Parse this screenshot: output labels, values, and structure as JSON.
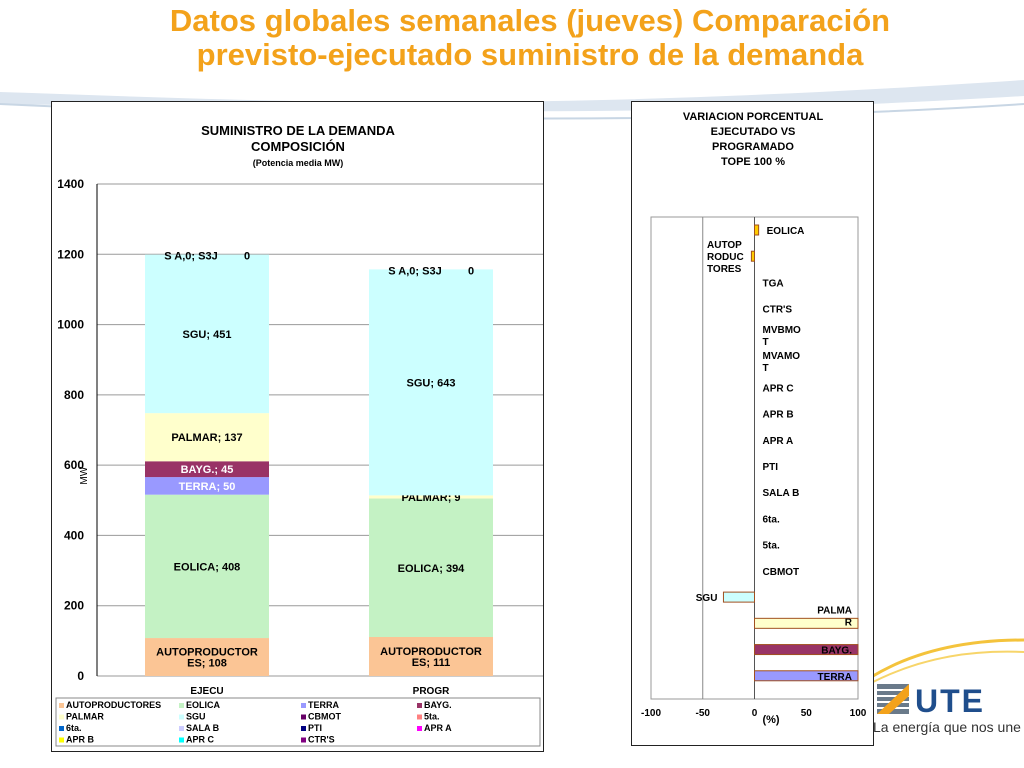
{
  "page_title_line1": "Datos globales semanales  (jueves) Comparación",
  "page_title_line2": "previsto-ejecutado suministro de la demanda",
  "brand": {
    "logo_text": "UTE",
    "tagline": "La energía que nos une"
  },
  "colors": {
    "title": "#f3a21b",
    "AUTOPRODUCTORES": "#fbc595",
    "EOLICA": "#c4f2c4",
    "TERRA": "#9999ff",
    "BAYG.": "#993366",
    "PALMAR": "#ffffcc",
    "SGU": "#ccffff",
    "CBMOT": "#660066",
    "5ta.": "#ff8080",
    "6ta.": "#0066cc",
    "SALA B": "#ccccff",
    "PTI": "#000080",
    "APR A": "#ff00ff",
    "APR B": "#ffff00",
    "APR C": "#00ffff",
    "CTR'S": "#800080"
  },
  "chart_data": [
    {
      "type": "bar",
      "stacked": true,
      "title": "SUMINISTRO DE LA DEMANDA\nCOMPOSICIÓN",
      "subtitle": "(Potencia media MW)",
      "xlabel": "",
      "ylabel": "MW",
      "ylim": [
        0,
        1400
      ],
      "yticks": [
        0,
        200,
        400,
        600,
        800,
        1000,
        1200,
        1400
      ],
      "grid": true,
      "legend": "bottom",
      "categories": [
        "EJECU",
        "PROGR"
      ],
      "series": [
        {
          "name": "AUTOPRODUCTORES",
          "values": [
            108,
            111
          ],
          "labels": [
            "AUTOPRODUCTOR\nES; 108",
            "AUTOPRODUCTOR\nES; 111"
          ]
        },
        {
          "name": "EOLICA",
          "values": [
            408,
            394
          ],
          "labels": [
            "EOLICA; 408",
            "EOLICA; 394"
          ]
        },
        {
          "name": "TERRA",
          "values": [
            50,
            0
          ],
          "labels": [
            "TERRA; 50",
            ""
          ]
        },
        {
          "name": "BAYG.",
          "values": [
            45,
            0
          ],
          "labels": [
            "BAYG.; 45",
            ""
          ]
        },
        {
          "name": "PALMAR",
          "values": [
            137,
            9
          ],
          "labels": [
            "PALMAR; 137",
            "PALMAR; 9"
          ]
        },
        {
          "name": "SGU",
          "values": [
            451,
            643
          ],
          "labels": [
            "SGU; 451",
            "SGU; 643"
          ]
        },
        {
          "name": "CBMOT",
          "values": [
            0,
            0
          ]
        },
        {
          "name": "5ta.",
          "values": [
            0,
            0
          ]
        },
        {
          "name": "6ta.",
          "values": [
            0,
            0
          ]
        },
        {
          "name": "SALA B",
          "values": [
            0,
            0
          ],
          "labels": [
            "S A,0; S3J",
            "S A,0; S3J"
          ]
        },
        {
          "name": "PTI",
          "values": [
            0,
            0
          ],
          "labels": [
            "0",
            "0"
          ]
        },
        {
          "name": "APR A",
          "values": [
            0,
            0
          ]
        },
        {
          "name": "APR B",
          "values": [
            0,
            0
          ]
        },
        {
          "name": "APR C",
          "values": [
            0,
            0
          ]
        },
        {
          "name": "CTR'S",
          "values": [
            0,
            0
          ]
        }
      ]
    },
    {
      "type": "bar",
      "orientation": "horizontal",
      "title": "VARIACION PORCENTUAL\nEJECUTADO VS\nPROGRAMADO\nTOPE 100 %",
      "xlabel": "(%)",
      "xlim": [
        -100,
        100
      ],
      "xticks": [
        -100,
        -50,
        0,
        50,
        100
      ],
      "grid": false,
      "categories": [
        "EOLICA",
        "AUTOP\nRODUC\nTORES",
        "TGA",
        "CTR'S",
        "MVBMO\nT",
        "MVAMO\nT",
        "APR C",
        "APR B",
        "APR A",
        "PTI",
        "SALA B",
        "6ta.",
        "5ta.",
        "CBMOT",
        "SGU",
        "PALMA\nR",
        "BAYG.",
        "TERRA"
      ],
      "values": [
        4,
        -3,
        0,
        0,
        0,
        0,
        0,
        0,
        0,
        0,
        0,
        0,
        0,
        0,
        -30,
        100,
        100,
        100
      ]
    }
  ]
}
